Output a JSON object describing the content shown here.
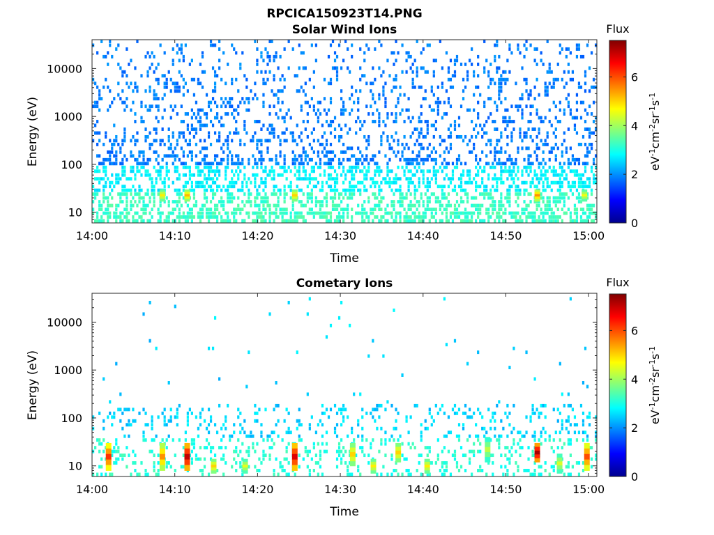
{
  "figure_title": "RPCICA150923T14.PNG",
  "chart_data": [
    {
      "type": "heatmap",
      "title": "Solar Wind Ions",
      "xlabel": "Time",
      "ylabel": "Energy (eV)",
      "x_ticks": [
        "14:00",
        "14:10",
        "14:20",
        "14:30",
        "14:40",
        "14:50",
        "15:00"
      ],
      "xlim": [
        "14:00",
        "15:01"
      ],
      "y_scale": "log",
      "ylim": [
        6,
        40000
      ],
      "y_ticks": [
        "10",
        "100",
        "1000",
        "10000"
      ],
      "colorbar": {
        "label": "Flux",
        "unit_base": "eV",
        "unit_parts": [
          "-1",
          "cm",
          "-2",
          "sr",
          "-1",
          "s",
          "-1"
        ],
        "range": [
          0,
          7.5
        ],
        "ticks": [
          "0",
          "2",
          "4",
          "6"
        ],
        "colormap": "jet"
      },
      "hotspots": [
        {
          "time": "14:08.5",
          "energy_eV": [
            17,
            30
          ],
          "flux": 4.8
        },
        {
          "time": "14:11.5",
          "energy_eV": [
            17,
            30
          ],
          "flux": 5.2
        },
        {
          "time": "14:24.5",
          "energy_eV": [
            17,
            30
          ],
          "flux": 5.0
        },
        {
          "time": "14:53.8",
          "energy_eV": [
            17,
            30
          ],
          "flux": 5.5
        },
        {
          "time": "14:59.5",
          "energy_eV": [
            17,
            30
          ],
          "flux": 4.6
        }
      ]
    },
    {
      "type": "heatmap",
      "title": "Cometary Ions",
      "xlabel": "Time",
      "ylabel": "Energy (eV)",
      "x_ticks": [
        "14:00",
        "14:10",
        "14:20",
        "14:30",
        "14:40",
        "14:50",
        "15:00"
      ],
      "xlim": [
        "14:00",
        "15:01"
      ],
      "y_scale": "log",
      "ylim": [
        6,
        40000
      ],
      "y_ticks": [
        "10",
        "100",
        "1000",
        "10000"
      ],
      "colorbar": {
        "label": "Flux",
        "unit_base": "eV",
        "unit_parts": [
          "-1",
          "cm",
          "-2",
          "sr",
          "-1",
          "s",
          "-1"
        ],
        "range": [
          0,
          7.5
        ],
        "ticks": [
          "0",
          "2",
          "4",
          "6"
        ],
        "colormap": "jet"
      },
      "hotspots": [
        {
          "time": "14:02.0",
          "energy_eV": [
            8,
            30
          ],
          "flux": 6.2
        },
        {
          "time": "14:08.5",
          "energy_eV": [
            8,
            30
          ],
          "flux": 5.5
        },
        {
          "time": "14:11.5",
          "energy_eV": [
            8,
            30
          ],
          "flux": 7.0
        },
        {
          "time": "14:14.7",
          "energy_eV": [
            7,
            14
          ],
          "flux": 5.0
        },
        {
          "time": "14:18.5",
          "energy_eV": [
            7,
            14
          ],
          "flux": 4.5
        },
        {
          "time": "14:24.5",
          "energy_eV": [
            8,
            30
          ],
          "flux": 6.8
        },
        {
          "time": "14:31.5",
          "energy_eV": [
            10,
            30
          ],
          "flux": 5.0
        },
        {
          "time": "14:34.0",
          "energy_eV": [
            7,
            14
          ],
          "flux": 4.8
        },
        {
          "time": "14:37.0",
          "energy_eV": [
            12,
            30
          ],
          "flux": 5.0
        },
        {
          "time": "14:40.5",
          "energy_eV": [
            7,
            14
          ],
          "flux": 4.8
        },
        {
          "time": "14:47.8",
          "energy_eV": [
            12,
            40
          ],
          "flux": 4.2
        },
        {
          "time": "14:53.8",
          "energy_eV": [
            12,
            30
          ],
          "flux": 7.2
        },
        {
          "time": "14:56.5",
          "energy_eV": [
            7,
            18
          ],
          "flux": 4.4
        },
        {
          "time": "14:59.8",
          "energy_eV": [
            8,
            30
          ],
          "flux": 6.0
        }
      ]
    }
  ]
}
